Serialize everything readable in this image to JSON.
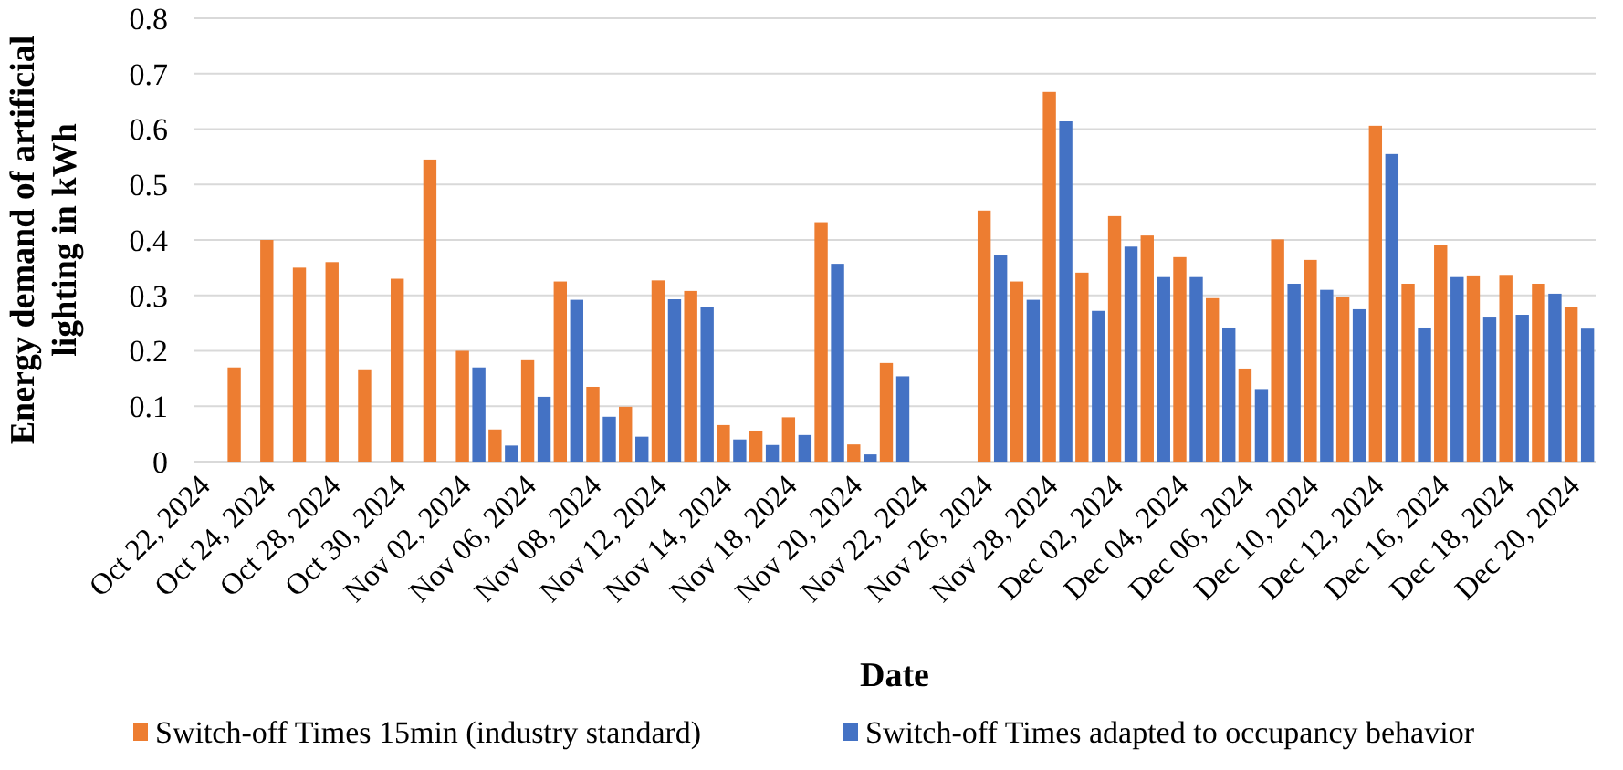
{
  "chart_data": {
    "type": "bar",
    "xlabel": "Date",
    "ylabel": "Energy demand of artificial lighting in kWh",
    "categories": [
      "Oct 22, 2024",
      null,
      "Oct 24, 2024",
      null,
      "Oct 28, 2024",
      null,
      "Oct 30, 2024",
      null,
      "Nov 02, 2024",
      null,
      "Nov 06, 2024",
      null,
      "Nov 08, 2024",
      null,
      "Nov 12, 2024",
      null,
      "Nov 14, 2024",
      null,
      "Nov 18, 2024",
      null,
      "Nov 20, 2024",
      null,
      "Nov 22, 2024",
      null,
      "Nov 26, 2024",
      null,
      "Nov 28, 2024",
      null,
      "Dec 02, 2024",
      null,
      "Dec 04, 2024",
      null,
      "Dec 06, 2024",
      null,
      "Dec 10, 2024",
      null,
      "Dec 12, 2024",
      null,
      "Dec 16, 2024",
      null,
      "Dec 18, 2024",
      null,
      "Dec 20, 2024"
    ],
    "series": [
      {
        "name": "Switch-off Times 15min (industry standard)",
        "color": "#ed7d31",
        "values": [
          null,
          0.17,
          0.4,
          0.35,
          0.36,
          0.165,
          0.33,
          0.545,
          0.2,
          0.058,
          0.183,
          0.325,
          0.135,
          0.099,
          0.327,
          0.308,
          0.066,
          0.056,
          0.08,
          0.432,
          0.031,
          0.178,
          null,
          null,
          0.453,
          0.325,
          0.667,
          0.341,
          0.443,
          0.408,
          0.369,
          0.295,
          0.168,
          0.401,
          0.364,
          0.297,
          0.606,
          0.321,
          0.391,
          0.336,
          0.337,
          0.321,
          0.279
        ]
      },
      {
        "name": "Switch-off Times adapted to occupancy behavior",
        "color": "#4472c4",
        "values": [
          null,
          null,
          null,
          null,
          null,
          null,
          null,
          null,
          0.17,
          0.029,
          0.117,
          0.292,
          0.081,
          0.045,
          0.293,
          0.279,
          0.04,
          0.03,
          0.048,
          0.357,
          0.013,
          0.154,
          null,
          null,
          0.372,
          0.292,
          0.614,
          0.272,
          0.388,
          0.333,
          0.333,
          0.242,
          0.131,
          0.321,
          0.31,
          0.275,
          0.555,
          0.242,
          0.333,
          0.26,
          0.265,
          0.303,
          0.24
        ]
      }
    ],
    "ylim": [
      0,
      0.8
    ],
    "yticks": [
      0,
      0.1,
      0.2,
      0.3,
      0.4,
      0.5,
      0.6,
      0.7,
      0.8
    ],
    "grid": "y",
    "legend": "bottom"
  }
}
